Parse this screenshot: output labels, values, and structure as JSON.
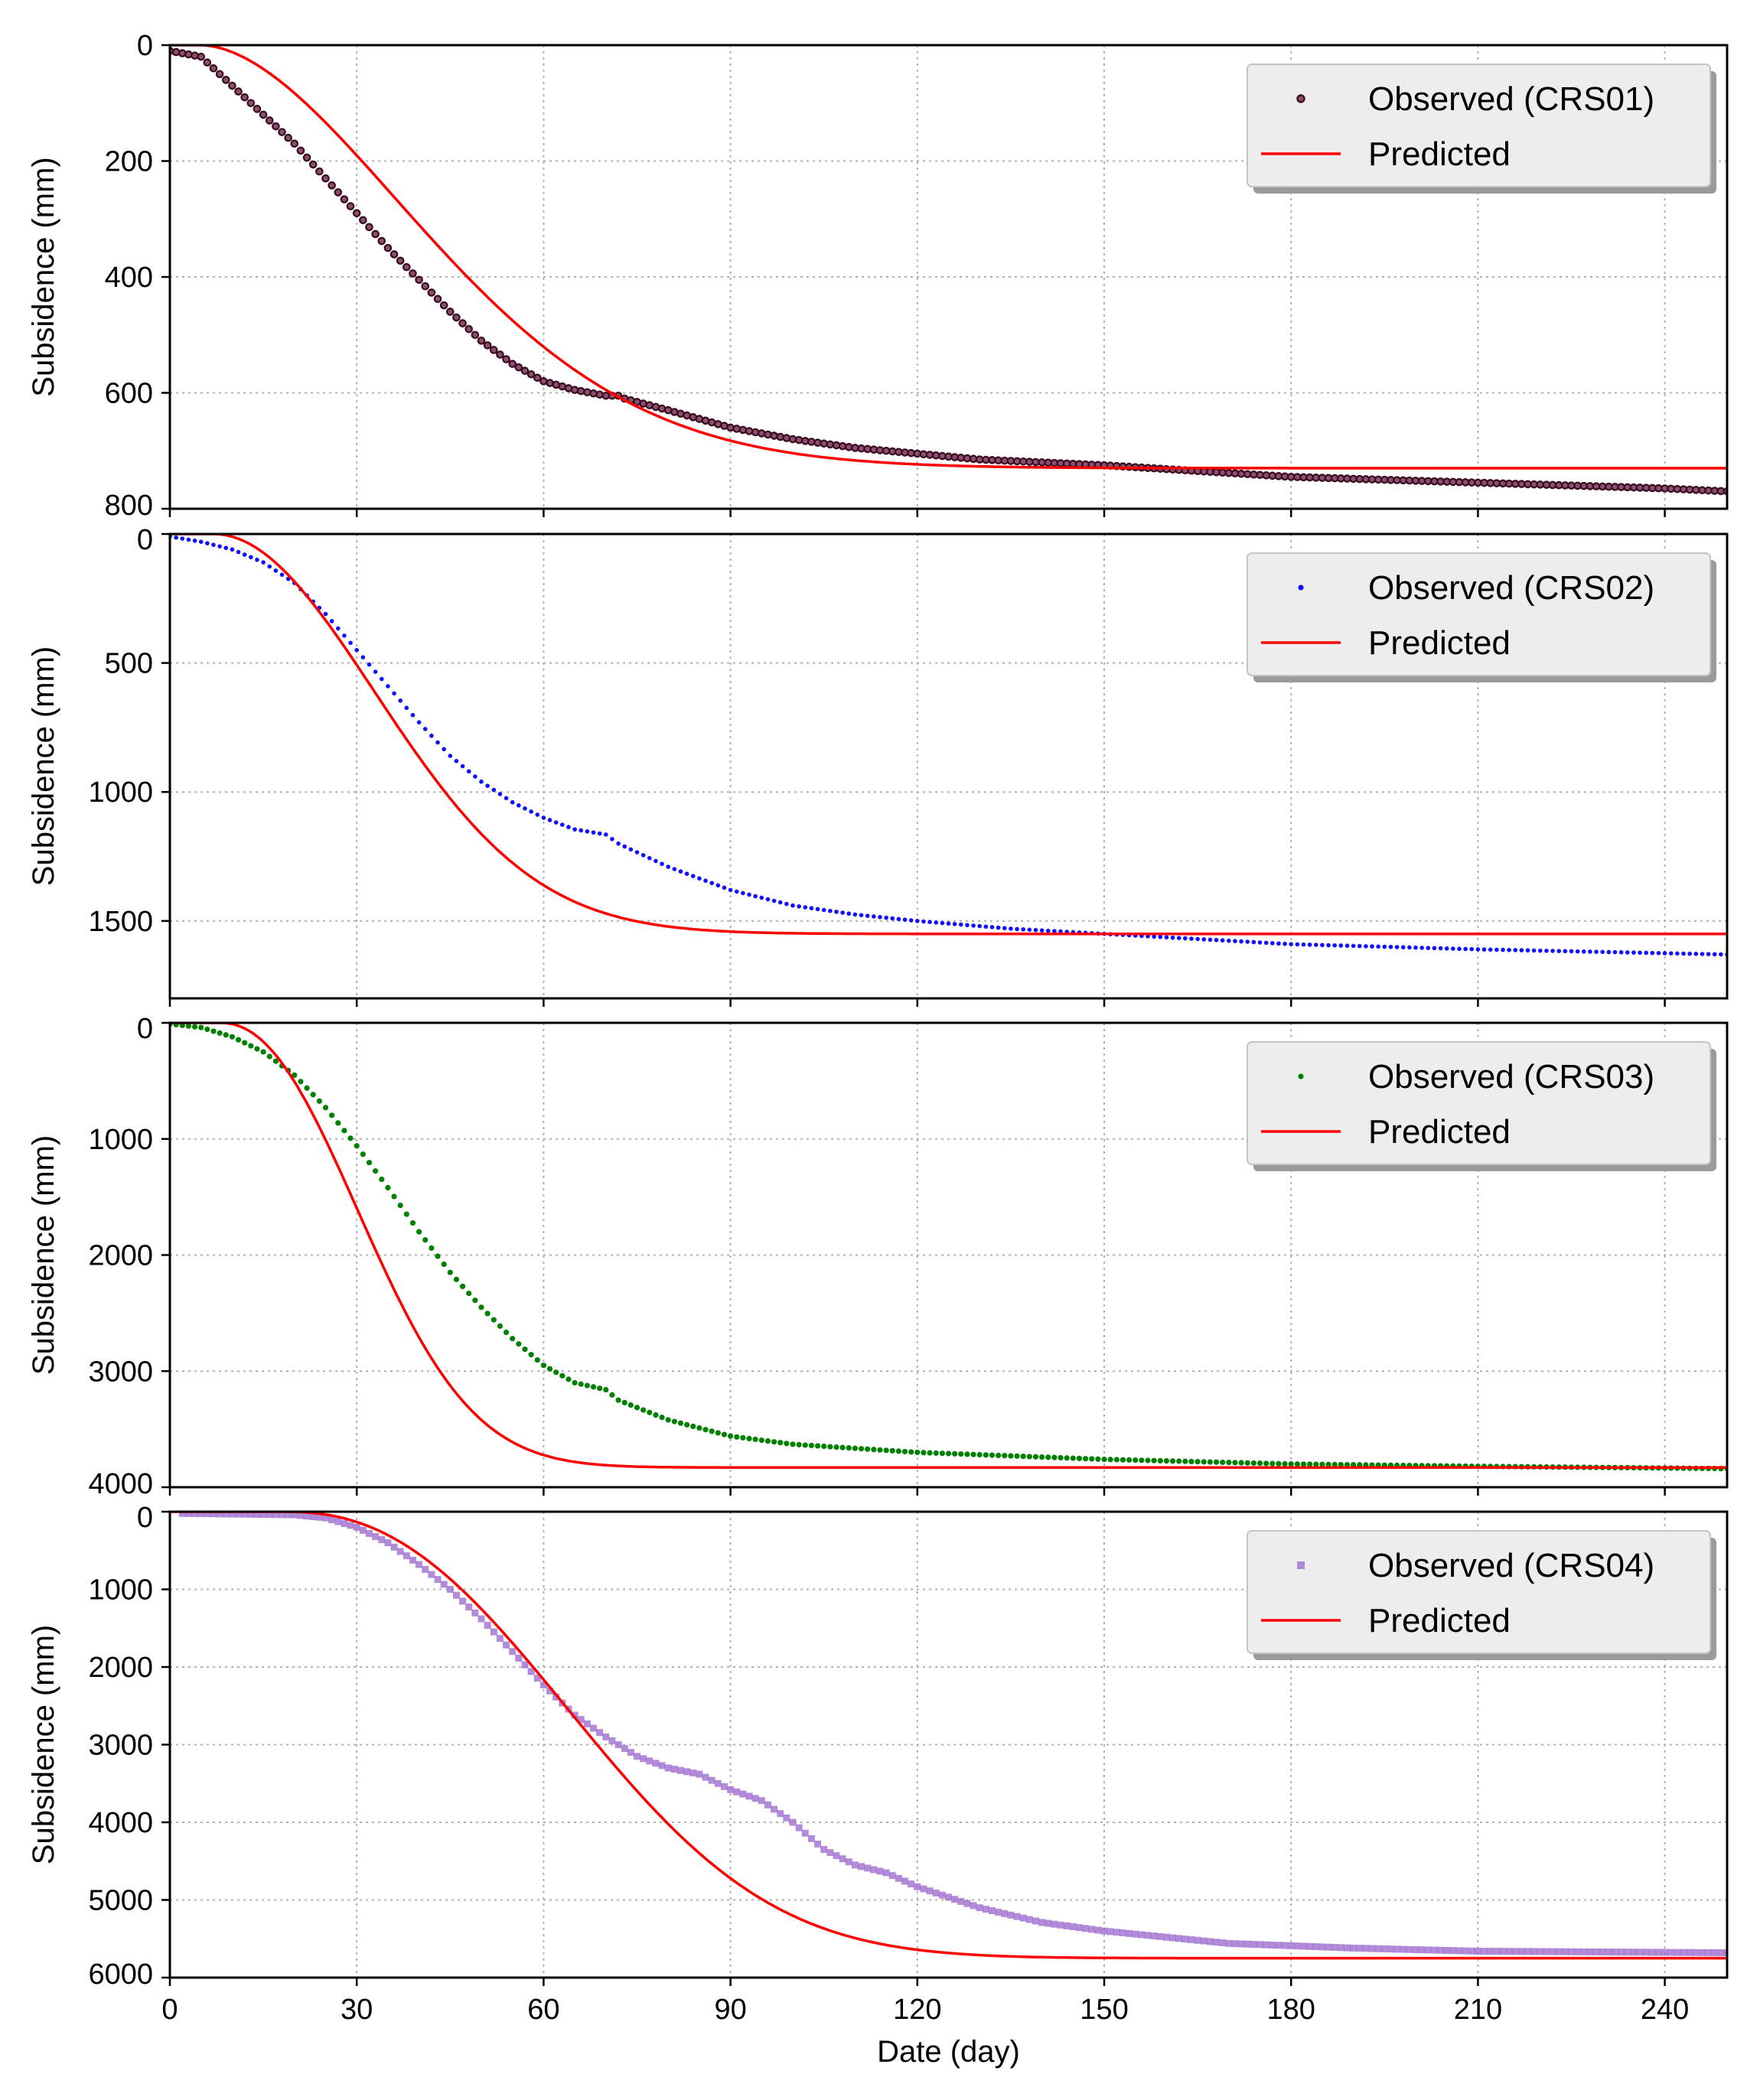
{
  "chart_data": [
    {
      "type": "scatter",
      "panel": 1,
      "title": "",
      "xlabel": "",
      "ylabel": "Subsidence (mm)",
      "xlim": [
        0,
        250
      ],
      "ylim": [
        0,
        800
      ],
      "y_inverted": true,
      "xticks": [
        0,
        30,
        60,
        90,
        120,
        150,
        180,
        210,
        240
      ],
      "yticks": [
        0,
        200,
        400,
        600,
        800
      ],
      "grid": true,
      "legend_position": "top-right",
      "legend": {
        "observed": "Observed (CRS01)",
        "predicted": "Predicted"
      },
      "observed": {
        "name": "Observed (CRS01)",
        "marker": "circle-outline",
        "color": "#3a0a1e",
        "step": 1,
        "x0": 0,
        "points": [
          [
            0,
            10
          ],
          [
            5,
            20
          ],
          [
            10,
            70
          ],
          [
            15,
            120
          ],
          [
            20,
            170
          ],
          [
            25,
            230
          ],
          [
            30,
            290
          ],
          [
            35,
            350
          ],
          [
            40,
            405
          ],
          [
            45,
            460
          ],
          [
            50,
            510
          ],
          [
            55,
            550
          ],
          [
            60,
            580
          ],
          [
            65,
            595
          ],
          [
            70,
            605
          ],
          [
            72,
            605
          ],
          [
            73,
            610
          ],
          [
            80,
            630
          ],
          [
            90,
            660
          ],
          [
            100,
            680
          ],
          [
            110,
            695
          ],
          [
            120,
            705
          ],
          [
            130,
            715
          ],
          [
            150,
            725
          ],
          [
            180,
            745
          ],
          [
            210,
            755
          ],
          [
            240,
            765
          ],
          [
            250,
            770
          ]
        ]
      },
      "predicted": {
        "name": "Predicted",
        "color": "#ff0000",
        "ult": 730,
        "t0": 5,
        "k": 0.00092,
        "n": 1.8
      }
    },
    {
      "type": "scatter",
      "panel": 2,
      "title": "",
      "xlabel": "",
      "ylabel": "Subsidence (mm)",
      "xlim": [
        0,
        250
      ],
      "ylim": [
        0,
        1800
      ],
      "y_inverted": true,
      "xticks": [
        0,
        30,
        60,
        90,
        120,
        150,
        180,
        210,
        240
      ],
      "yticks": [
        0,
        500,
        1000,
        1500
      ],
      "grid": true,
      "legend_position": "top-right",
      "legend": {
        "observed": "Observed (CRS02)",
        "predicted": "Predicted"
      },
      "observed": {
        "name": "Observed (CRS02)",
        "marker": "dot",
        "color": "#1010ff",
        "step": 1,
        "x0": 0,
        "points": [
          [
            0,
            10
          ],
          [
            5,
            30
          ],
          [
            10,
            60
          ],
          [
            15,
            110
          ],
          [
            20,
            190
          ],
          [
            25,
            310
          ],
          [
            30,
            450
          ],
          [
            35,
            590
          ],
          [
            40,
            730
          ],
          [
            45,
            860
          ],
          [
            50,
            960
          ],
          [
            55,
            1040
          ],
          [
            60,
            1100
          ],
          [
            65,
            1145
          ],
          [
            70,
            1165
          ],
          [
            72,
            1200
          ],
          [
            80,
            1290
          ],
          [
            90,
            1380
          ],
          [
            100,
            1440
          ],
          [
            110,
            1475
          ],
          [
            120,
            1500
          ],
          [
            135,
            1530
          ],
          [
            150,
            1550
          ],
          [
            180,
            1590
          ],
          [
            210,
            1610
          ],
          [
            250,
            1630
          ]
        ]
      },
      "predicted": {
        "name": "Predicted",
        "color": "#ff0000",
        "ult": 1550,
        "t0": 7,
        "k": 0.00075,
        "n": 2.0
      }
    },
    {
      "type": "scatter",
      "panel": 3,
      "title": "",
      "xlabel": "",
      "ylabel": "Subsidence (mm)",
      "xlim": [
        0,
        250
      ],
      "ylim": [
        0,
        4000
      ],
      "y_inverted": true,
      "xticks": [
        0,
        30,
        60,
        90,
        120,
        150,
        180,
        210,
        240
      ],
      "yticks": [
        0,
        1000,
        2000,
        3000,
        4000
      ],
      "grid": true,
      "legend_position": "top-right",
      "legend": {
        "observed": "Observed (CRS03)",
        "predicted": "Predicted"
      },
      "observed": {
        "name": "Observed (CRS03)",
        "marker": "dot",
        "color": "#008000",
        "step": 1,
        "x0": 0,
        "points": [
          [
            0,
            10
          ],
          [
            5,
            40
          ],
          [
            10,
            120
          ],
          [
            15,
            250
          ],
          [
            20,
            450
          ],
          [
            25,
            730
          ],
          [
            30,
            1060
          ],
          [
            35,
            1420
          ],
          [
            40,
            1800
          ],
          [
            45,
            2150
          ],
          [
            50,
            2450
          ],
          [
            55,
            2720
          ],
          [
            60,
            2950
          ],
          [
            65,
            3100
          ],
          [
            70,
            3160
          ],
          [
            72,
            3250
          ],
          [
            80,
            3420
          ],
          [
            90,
            3560
          ],
          [
            100,
            3630
          ],
          [
            120,
            3700
          ],
          [
            150,
            3760
          ],
          [
            180,
            3800
          ],
          [
            210,
            3820
          ],
          [
            250,
            3840
          ]
        ]
      },
      "predicted": {
        "name": "Predicted",
        "color": "#ff0000",
        "ult": 3830,
        "t0": 8,
        "k": 0.0006,
        "n": 2.2
      }
    },
    {
      "type": "scatter",
      "panel": 4,
      "title": "",
      "xlabel": "Date (day)",
      "ylabel": "Subsidence (mm)",
      "xlim": [
        0,
        250
      ],
      "ylim": [
        0,
        6000
      ],
      "y_inverted": true,
      "xticks": [
        0,
        30,
        60,
        90,
        120,
        150,
        180,
        210,
        240
      ],
      "yticks": [
        0,
        1000,
        2000,
        3000,
        4000,
        5000,
        6000
      ],
      "grid": true,
      "legend_position": "top-right",
      "legend": {
        "observed": "Observed (CRS04)",
        "predicted": "Predicted"
      },
      "observed": {
        "name": "Observed (CRS04)",
        "marker": "square",
        "color": "#9966cc",
        "step": 1,
        "x0": 2,
        "points": [
          [
            0,
            20
          ],
          [
            10,
            30
          ],
          [
            20,
            40
          ],
          [
            25,
            80
          ],
          [
            30,
            200
          ],
          [
            35,
            400
          ],
          [
            40,
            680
          ],
          [
            45,
            1000
          ],
          [
            50,
            1380
          ],
          [
            55,
            1800
          ],
          [
            60,
            2230
          ],
          [
            65,
            2620
          ],
          [
            70,
            2900
          ],
          [
            75,
            3150
          ],
          [
            80,
            3300
          ],
          [
            85,
            3380
          ],
          [
            90,
            3580
          ],
          [
            95,
            3720
          ],
          [
            100,
            4000
          ],
          [
            105,
            4350
          ],
          [
            110,
            4550
          ],
          [
            115,
            4650
          ],
          [
            120,
            4830
          ],
          [
            130,
            5100
          ],
          [
            140,
            5290
          ],
          [
            150,
            5400
          ],
          [
            170,
            5560
          ],
          [
            190,
            5620
          ],
          [
            210,
            5660
          ],
          [
            250,
            5680
          ]
        ]
      },
      "predicted": {
        "name": "Predicted",
        "color": "#ff0000",
        "ult": 5750,
        "t0": 18,
        "k": 6e-05,
        "n": 2.4
      }
    }
  ]
}
